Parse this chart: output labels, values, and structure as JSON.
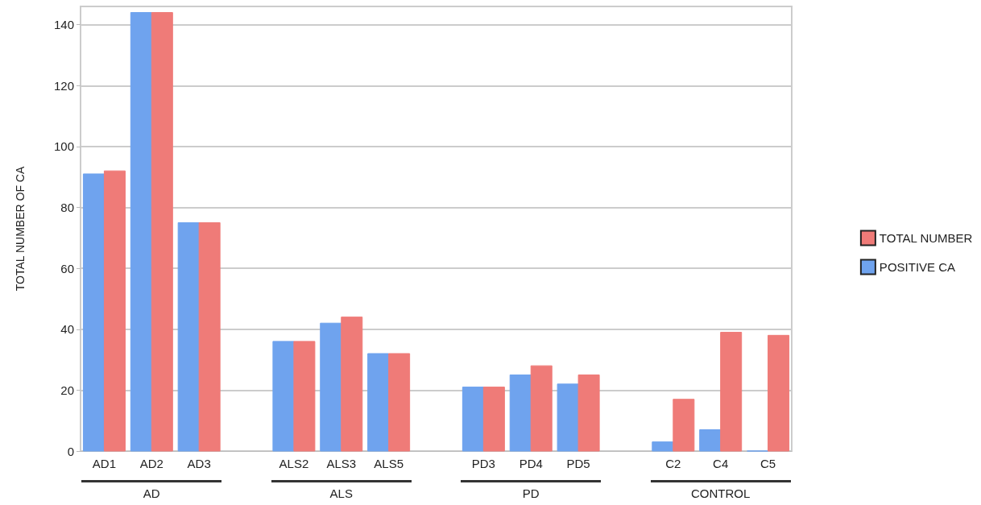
{
  "chart_data": {
    "type": "bar",
    "ylabel": "TOTAL NUMBER OF CA",
    "categories": [
      "AD1",
      "AD2",
      "AD3",
      null,
      "ALS2",
      "ALS3",
      "ALS5",
      null,
      "PD3",
      "PD4",
      "PD5",
      null,
      "C2",
      "C4",
      "C5"
    ],
    "series": [
      {
        "name": "POSITIVE CA",
        "color": "#6fa3ee",
        "values": [
          91,
          144,
          75,
          null,
          36,
          42,
          32,
          null,
          21,
          25,
          22,
          null,
          3,
          7,
          0
        ]
      },
      {
        "name": "TOTAL NUMBER",
        "color": "#ef7b78",
        "values": [
          92,
          144,
          75,
          null,
          36,
          44,
          32,
          null,
          21,
          28,
          25,
          null,
          17,
          39,
          38
        ]
      }
    ],
    "annotations": [
      "AD",
      "ALS",
      "PD",
      "CONTROL"
    ],
    "ylim": [
      0,
      146
    ],
    "yticks": [
      0,
      20,
      40,
      60,
      80,
      100,
      120,
      140
    ],
    "grid": "y",
    "legend": "right"
  }
}
